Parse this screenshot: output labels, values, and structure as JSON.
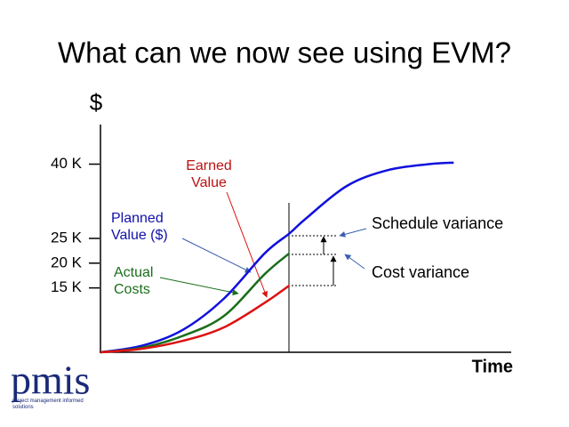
{
  "title": "What can we now see using EVM?",
  "logo": {
    "name": "pmis",
    "tagline": "project management informed solutions"
  },
  "chart_data": {
    "type": "line",
    "y_label": "$",
    "x_label": "Time",
    "xlim": [
      0,
      10
    ],
    "ylim": [
      2000,
      48000
    ],
    "yticks": [
      {
        "value": 15000,
        "label": "15 K"
      },
      {
        "value": 20000,
        "label": "20 K"
      },
      {
        "value": 25000,
        "label": "25 K"
      },
      {
        "value": 40000,
        "label": "40 K"
      }
    ],
    "series": [
      {
        "name": "Planned Value ($)",
        "color": "#1010dd",
        "x": [
          0,
          1,
          2,
          3,
          4,
          4.6,
          5,
          6,
          7,
          8,
          8.6
        ],
        "values": [
          2000,
          3300,
          6500,
          12800,
          22000,
          26000,
          29000,
          35600,
          38800,
          40000,
          40300
        ]
      },
      {
        "name": "Actual Costs",
        "color": "#1a6e1a",
        "x": [
          0,
          1,
          2,
          3,
          4,
          4.6
        ],
        "values": [
          2000,
          2900,
          5300,
          9300,
          17800,
          22000
        ]
      },
      {
        "name": "Earned Value",
        "color": "#dd1111",
        "x": [
          0,
          1,
          2,
          3,
          4,
          4.6
        ],
        "values": [
          2000,
          2700,
          4300,
          7000,
          12000,
          15500
        ]
      }
    ],
    "annotations": [
      "Schedule variance",
      "Cost variance"
    ]
  }
}
